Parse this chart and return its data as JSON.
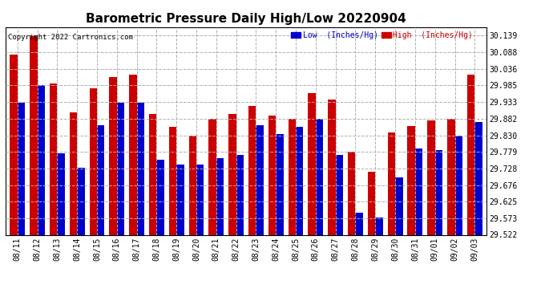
{
  "title": "Barometric Pressure Daily High/Low 20220904",
  "copyright": "Copyright 2022 Cartronics.com",
  "legend_low": "Low  (Inches/Hg)",
  "legend_high": "High  (Inches/Hg)",
  "dates": [
    "08/11",
    "08/12",
    "08/13",
    "08/14",
    "08/15",
    "08/16",
    "08/17",
    "08/18",
    "08/19",
    "08/20",
    "08/21",
    "08/22",
    "08/23",
    "08/24",
    "08/25",
    "08/26",
    "08/27",
    "08/28",
    "08/29",
    "08/30",
    "08/31",
    "09/01",
    "09/02",
    "09/03"
  ],
  "low_values": [
    29.93,
    29.985,
    29.775,
    29.73,
    29.86,
    29.93,
    29.93,
    29.755,
    29.74,
    29.74,
    29.76,
    29.77,
    29.86,
    29.835,
    29.855,
    29.88,
    29.77,
    29.59,
    29.575,
    29.7,
    29.79,
    29.785,
    29.83,
    29.87
  ],
  "high_values": [
    30.08,
    30.14,
    29.99,
    29.9,
    29.975,
    30.01,
    30.018,
    29.895,
    29.855,
    29.828,
    29.882,
    29.895,
    29.92,
    29.89,
    29.882,
    29.96,
    29.94,
    29.778,
    29.718,
    29.838,
    29.858,
    29.875,
    29.882,
    30.018
  ],
  "ylim_min": 29.522,
  "ylim_max": 30.165,
  "yticks": [
    29.522,
    29.573,
    29.625,
    29.676,
    29.728,
    29.779,
    29.83,
    29.882,
    29.933,
    29.985,
    30.036,
    30.088,
    30.139
  ],
  "low_color": "#0000cc",
  "high_color": "#cc0000",
  "bg_color": "#ffffff",
  "grid_color": "#b0b0b0",
  "title_fontsize": 11,
  "tick_fontsize": 7,
  "bar_width": 0.38,
  "fig_width": 6.9,
  "fig_height": 3.75,
  "dpi": 100
}
